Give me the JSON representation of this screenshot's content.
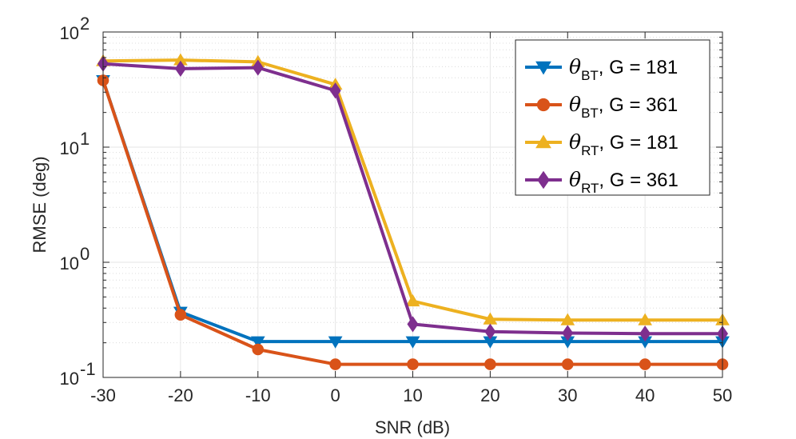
{
  "chart_data": {
    "type": "line",
    "title": "",
    "xlabel": "SNR (dB)",
    "ylabel": "RMSE (deg)",
    "xscale": "linear",
    "yscale": "log",
    "xlim": [
      -30,
      50
    ],
    "ylim": [
      0.1,
      100
    ],
    "grid": true,
    "legend_position": "top-right",
    "x": [
      -30,
      -20,
      -10,
      0,
      10,
      20,
      30,
      40,
      50
    ],
    "x_tick_labels": [
      "-30",
      "-20",
      "-10",
      "0",
      "10",
      "20",
      "30",
      "40",
      "50"
    ],
    "y_ticks": [
      0.1,
      1,
      10,
      100
    ],
    "y_tick_labels": [
      {
        "base": "10",
        "exp": "-1"
      },
      {
        "base": "10",
        "exp": "0"
      },
      {
        "base": "10",
        "exp": "1"
      },
      {
        "base": "10",
        "exp": "2"
      }
    ],
    "series": [
      {
        "name": "θBT, G = 181",
        "label": {
          "symbol": "θ",
          "sub": "BT",
          "text": ", G =  181"
        },
        "color": "#0072BD",
        "marker": "triangle-down",
        "values": [
          38,
          0.37,
          0.205,
          0.205,
          0.205,
          0.205,
          0.205,
          0.205,
          0.205
        ]
      },
      {
        "name": "θBT, G = 361",
        "label": {
          "symbol": "θ",
          "sub": "BT",
          "text": ", G =  361"
        },
        "color": "#D95319",
        "marker": "circle",
        "values": [
          38,
          0.35,
          0.175,
          0.13,
          0.13,
          0.13,
          0.13,
          0.13,
          0.13
        ]
      },
      {
        "name": "θRT, G = 181",
        "label": {
          "symbol": "θ",
          "sub": "RT",
          "text": ", G =  181"
        },
        "color": "#EDB120",
        "marker": "triangle-up",
        "values": [
          56,
          57,
          55,
          35,
          0.46,
          0.32,
          0.315,
          0.315,
          0.315
        ]
      },
      {
        "name": "θRT, G = 361",
        "label": {
          "symbol": "θ",
          "sub": "RT",
          "text": ", G =  361"
        },
        "color": "#7E2F8E",
        "marker": "diamond",
        "values": [
          53,
          48,
          49,
          31,
          0.29,
          0.25,
          0.243,
          0.24,
          0.24
        ]
      }
    ]
  }
}
